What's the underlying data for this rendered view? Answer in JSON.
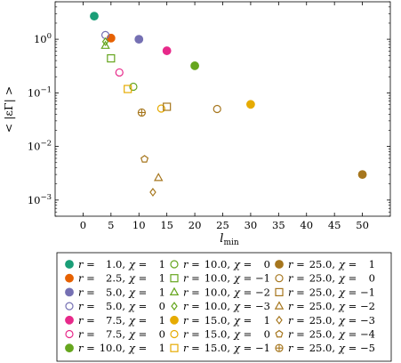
{
  "chart_data": {
    "type": "scatter",
    "title": "",
    "xlabel": "l_min",
    "ylabel": "< |εΓ| >",
    "xscale": "linear",
    "yscale": "log",
    "xlim": [
      -5,
      55
    ],
    "ylim": [
      0.0005,
      5
    ],
    "xticks": [
      0,
      5,
      10,
      15,
      20,
      25,
      30,
      35,
      40,
      45,
      50
    ],
    "yticks": [
      0.001,
      0.01,
      0.1,
      1
    ],
    "ytick_labels": [
      {
        "base": "10",
        "exp": "−3"
      },
      {
        "base": "10",
        "exp": "−2"
      },
      {
        "base": "10",
        "exp": "−1"
      },
      {
        "base": "10",
        "exp": "0"
      }
    ],
    "grid": false,
    "legend": {
      "placement": "bottom",
      "columns": 3,
      "entries": [
        {
          "r": "1.0",
          "chi": "1"
        },
        {
          "r": "2.5",
          "chi": "1"
        },
        {
          "r": "5.0",
          "chi": "1"
        },
        {
          "r": "5.0",
          "chi": "0"
        },
        {
          "r": "7.5",
          "chi": "1"
        },
        {
          "r": "7.5",
          "chi": "0"
        },
        {
          "r": "10.0",
          "chi": "1"
        },
        {
          "r": "10.0",
          "chi": "0"
        },
        {
          "r": "10.0",
          "chi": "−1"
        },
        {
          "r": "10.0",
          "chi": "−2"
        },
        {
          "r": "10.0",
          "chi": "−3"
        },
        {
          "r": "15.0",
          "chi": "1"
        },
        {
          "r": "15.0",
          "chi": "0"
        },
        {
          "r": "15.0",
          "chi": "−1"
        },
        {
          "r": "25.0",
          "chi": "1"
        },
        {
          "r": "25.0",
          "chi": "0"
        },
        {
          "r": "25.0",
          "chi": "−1"
        },
        {
          "r": "25.0",
          "chi": "−2"
        },
        {
          "r": "25.0",
          "chi": "−3"
        },
        {
          "r": "25.0",
          "chi": "−4"
        },
        {
          "r": "25.0",
          "chi": "−5"
        }
      ]
    },
    "series": [
      {
        "name": "r = 1.0, χ = 1",
        "marker": "circle-filled",
        "color": "#1a9e77",
        "x": 2,
        "y": 2.7
      },
      {
        "name": "r = 2.5, χ = 1",
        "marker": "circle-filled",
        "color": "#e66101",
        "x": 5,
        "y": 1.05
      },
      {
        "name": "r = 5.0, χ = 1",
        "marker": "circle-filled",
        "color": "#7570b3",
        "x": 10,
        "y": 1.0
      },
      {
        "name": "r = 5.0, χ = 0",
        "marker": "circle-open",
        "color": "#7570b3",
        "x": 4,
        "y": 1.2
      },
      {
        "name": "r = 7.5, χ = 1",
        "marker": "circle-filled",
        "color": "#e7298a",
        "x": 15,
        "y": 0.61
      },
      {
        "name": "r = 7.5, χ = 0",
        "marker": "circle-open",
        "color": "#e7298a",
        "x": 6.5,
        "y": 0.24
      },
      {
        "name": "r = 10.0, χ = 1",
        "marker": "circle-filled",
        "color": "#66a61e",
        "x": 20,
        "y": 0.32
      },
      {
        "name": "r = 10.0, χ = 0",
        "marker": "circle-open",
        "color": "#66a61e",
        "x": 9,
        "y": 0.13
      },
      {
        "name": "r = 10.0, χ = −1",
        "marker": "square-open",
        "color": "#66a61e",
        "x": 5,
        "y": 0.44
      },
      {
        "name": "r = 10.0, χ = −2",
        "marker": "triangle-open",
        "color": "#66a61e",
        "x": 4,
        "y": 0.76
      },
      {
        "name": "r = 10.0, χ = −3",
        "marker": "diamond-open",
        "color": "#66a61e",
        "x": 4,
        "y": 0.9
      },
      {
        "name": "r = 15.0, χ = 1",
        "marker": "circle-filled",
        "color": "#e6ab02",
        "x": 30,
        "y": 0.061
      },
      {
        "name": "r = 15.0, χ = 0",
        "marker": "circle-open",
        "color": "#e6ab02",
        "x": 14,
        "y": 0.051
      },
      {
        "name": "r = 15.0, χ = −1",
        "marker": "square-open",
        "color": "#e6ab02",
        "x": 8,
        "y": 0.118
      },
      {
        "name": "r = 25.0, χ = 1",
        "marker": "circle-filled",
        "color": "#a6761d",
        "x": 50,
        "y": 0.003
      },
      {
        "name": "r = 25.0, χ = 0",
        "marker": "circle-open",
        "color": "#a6761d",
        "x": 24,
        "y": 0.05
      },
      {
        "name": "r = 25.0, χ = −1",
        "marker": "square-open",
        "color": "#a6761d",
        "x": 15,
        "y": 0.055
      },
      {
        "name": "r = 25.0, χ = −2",
        "marker": "triangle-open",
        "color": "#a6761d",
        "x": 13.5,
        "y": 0.0026
      },
      {
        "name": "r = 25.0, χ = −3",
        "marker": "diamond-open",
        "color": "#a6761d",
        "x": 12.5,
        "y": 0.0014
      },
      {
        "name": "r = 25.0, χ = −4",
        "marker": "pentagon-open",
        "color": "#a6761d",
        "x": 11,
        "y": 0.0058
      },
      {
        "name": "r = 25.0, χ = −5",
        "marker": "oplus",
        "color": "#a6761d",
        "x": 10.5,
        "y": 0.043
      }
    ]
  }
}
